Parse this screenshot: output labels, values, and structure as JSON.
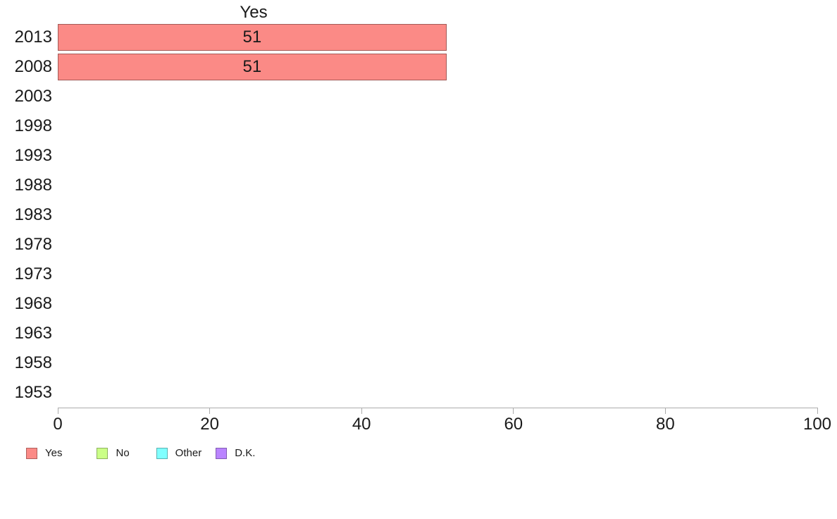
{
  "chart_data": {
    "type": "bar",
    "orientation": "horizontal",
    "title": "Yes",
    "categories": [
      "2013",
      "2008",
      "2003",
      "1998",
      "1993",
      "1988",
      "1983",
      "1978",
      "1973",
      "1968",
      "1963",
      "1958",
      "1953"
    ],
    "series": [
      {
        "name": "Yes",
        "color": "#FB8A86",
        "values": [
          51,
          51,
          null,
          null,
          null,
          null,
          null,
          null,
          null,
          null,
          null,
          null,
          null
        ]
      }
    ],
    "bar_value_labels": [
      "51",
      "51",
      "",
      "",
      "",
      "",
      "",
      "",
      "",
      "",
      "",
      "",
      ""
    ],
    "xlabel": "",
    "ylabel": "",
    "xlim": [
      0,
      100
    ],
    "x_ticks": [
      0,
      20,
      40,
      60,
      80,
      100
    ],
    "grid": false,
    "axis_color": "#ababab",
    "text_color": "#1a1a1a",
    "legend": {
      "position": "bottom-left",
      "entries": [
        {
          "label": "Yes",
          "color": "#FB8A86"
        },
        {
          "label": "No",
          "color": "#CBFF87"
        },
        {
          "label": "Other",
          "color": "#80FFFF"
        },
        {
          "label": "D.K.",
          "color": "#BA84FF"
        }
      ]
    }
  }
}
